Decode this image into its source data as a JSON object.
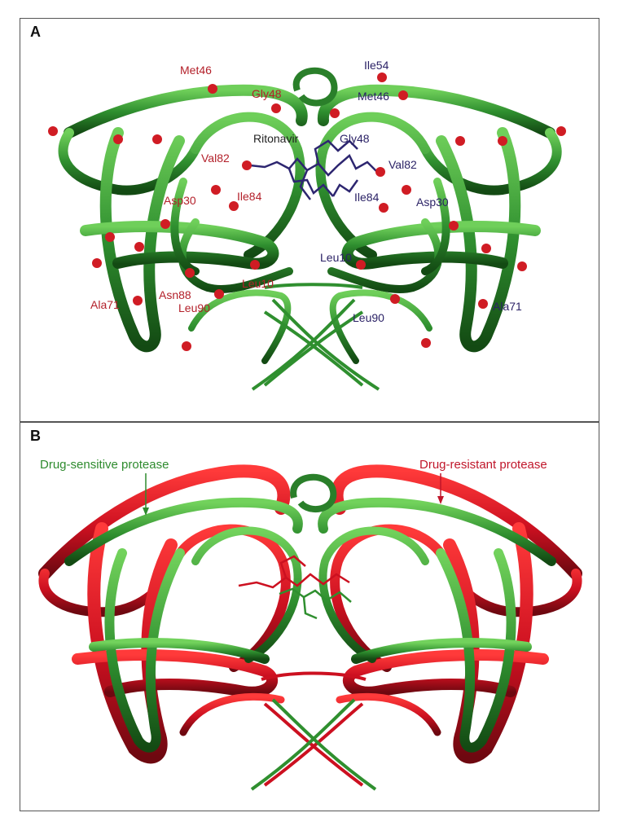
{
  "panels": {
    "a": {
      "letter": "A",
      "ligand_label": "Ritonavir",
      "left_labels": [
        "Met46",
        "Gly48",
        "Val82",
        "Ile84",
        "Asp30",
        "Leu10",
        "Asn88",
        "Leu90",
        "Ala71"
      ],
      "right_labels": [
        "Ile54",
        "Met46",
        "Gly48",
        "Val82",
        "Ile84",
        "Asp30",
        "Leu10",
        "Leu90",
        "Ala71"
      ]
    },
    "b": {
      "letter": "B",
      "legend_sensitive": "Drug-sensitive protease",
      "legend_resistant": "Drug-resistant protease"
    }
  },
  "colors": {
    "ribbon_green": "#2f8f2f",
    "ribbon_dark": "#1d5a1d",
    "ribbon_red": "#cc1020",
    "mutation_dot": "#d01c24",
    "ligand": "#2d2670",
    "left_label": "#b3202a",
    "right_label": "#2b2266"
  }
}
